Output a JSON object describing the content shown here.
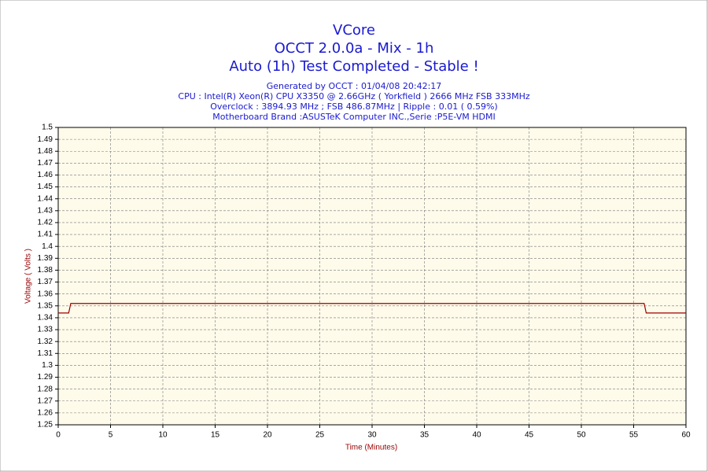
{
  "chart_data": {
    "type": "line",
    "title": "VCore",
    "subtitle": "OCCT 2.0.0a - Mix - 1h",
    "status": "Auto (1h) Test Completed - Stable !",
    "info": [
      "Generated by OCCT : 01/04/08 20:42:17",
      "CPU : Intel(R) Xeon(R) CPU X3350 @ 2.66GHz ( Yorkfield ) 2666 MHz FSB 333MHz",
      "Overclock : 3894.93 MHz ; FSB 486.87MHz | Ripple : 0.01 ( 0.59%)",
      "Motherboard Brand :ASUSTeK Computer INC.,Serie :P5E-VM HDMI"
    ],
    "x_label": "Time (Minutes)",
    "y_label": "Voltage ( Volts )",
    "x": [
      0,
      1,
      1.2,
      56,
      56.2,
      60
    ],
    "series": [
      {
        "name": "VCore",
        "color": "#990000",
        "values": [
          1.344,
          1.344,
          1.352,
          1.352,
          1.344,
          1.344
        ]
      }
    ],
    "xlim": [
      0,
      60
    ],
    "xticks": [
      0,
      5,
      10,
      15,
      20,
      25,
      30,
      35,
      40,
      45,
      50,
      55,
      60
    ],
    "ylim": [
      1.25,
      1.5
    ],
    "yticks": [
      1.25,
      1.26,
      1.27,
      1.28,
      1.29,
      1.3,
      1.31,
      1.32,
      1.33,
      1.34,
      1.35,
      1.36,
      1.37,
      1.38,
      1.39,
      1.4,
      1.41,
      1.42,
      1.43,
      1.44,
      1.45,
      1.46,
      1.47,
      1.48,
      1.49,
      1.5
    ],
    "grid": true
  }
}
